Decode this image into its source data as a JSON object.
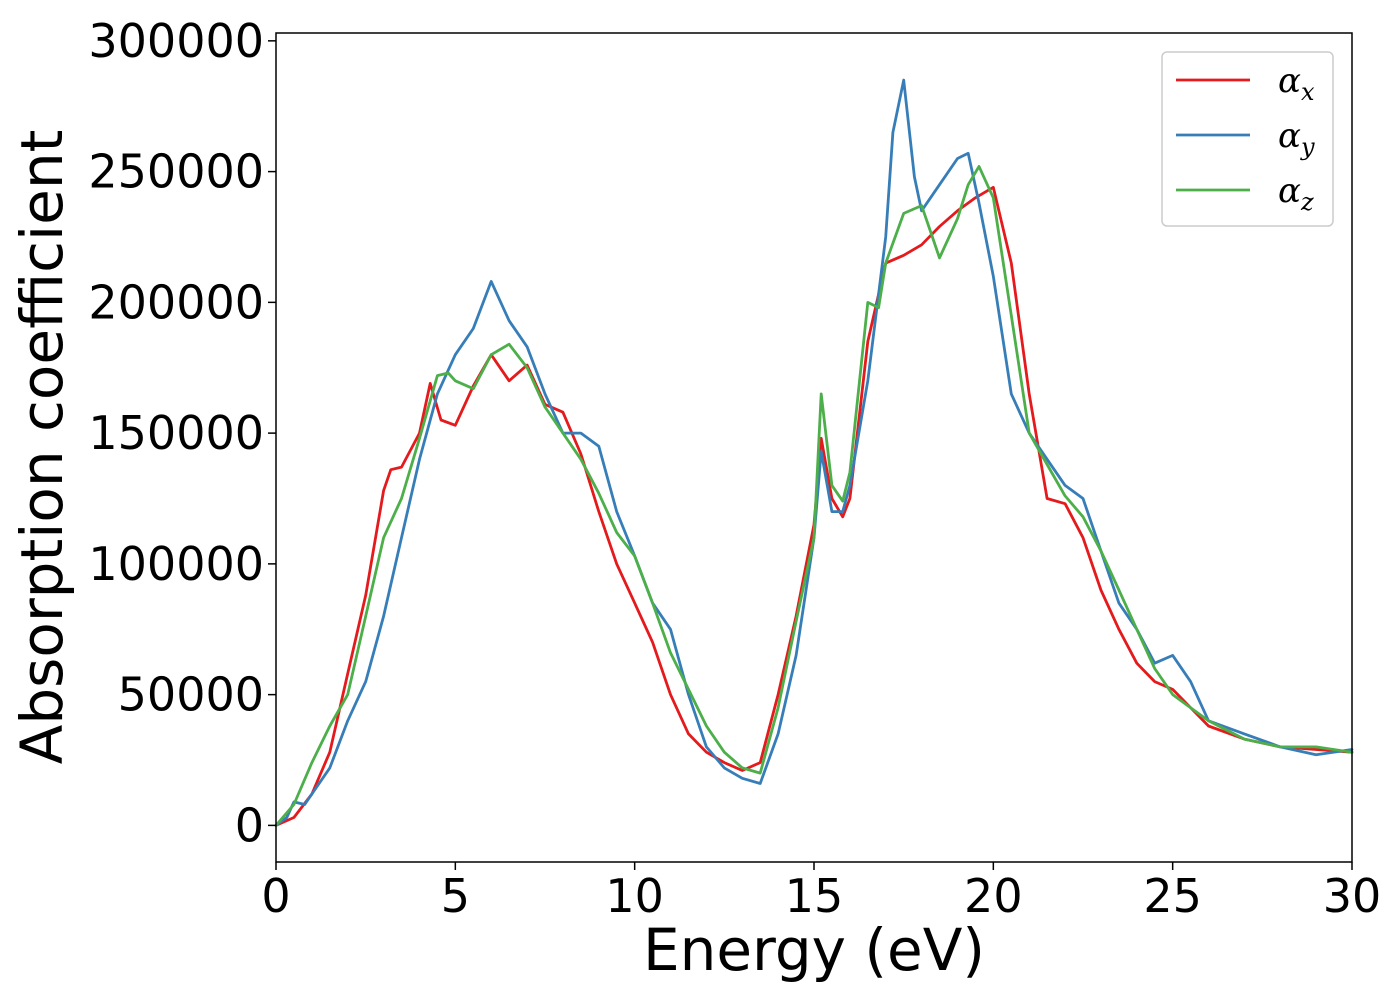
{
  "chart_data": {
    "type": "line",
    "title": "",
    "xlabel": "Energy (eV)",
    "ylabel": "Absorption coefficient",
    "xlim": [
      0,
      30
    ],
    "ylim": [
      -14000,
      303000
    ],
    "xticks": [
      0,
      5,
      10,
      15,
      20,
      25,
      30
    ],
    "yticks": [
      0,
      50000,
      100000,
      150000,
      200000,
      250000,
      300000
    ],
    "grid": false,
    "legend_position": "top-right",
    "series": [
      {
        "name": "α",
        "subscript": "x",
        "color": "#e41a1c",
        "x": [
          0,
          0.5,
          1.0,
          1.5,
          2.0,
          2.5,
          3.0,
          3.2,
          3.5,
          4.0,
          4.3,
          4.6,
          5.0,
          5.5,
          6.0,
          6.5,
          7.0,
          7.5,
          8.0,
          8.5,
          9.0,
          9.5,
          10.0,
          10.5,
          11.0,
          11.5,
          12.0,
          12.5,
          13.0,
          13.5,
          14.0,
          14.5,
          15.0,
          15.2,
          15.5,
          15.8,
          16.0,
          16.5,
          17.0,
          17.5,
          18.0,
          18.5,
          19.0,
          19.5,
          20.0,
          20.5,
          21.0,
          21.5,
          22.0,
          22.5,
          23.0,
          23.5,
          24.0,
          24.5,
          25.0,
          25.5,
          26.0,
          27.0,
          28.0,
          29.0,
          30.0
        ],
        "values": [
          0,
          3000,
          12000,
          28000,
          58000,
          88000,
          128000,
          136000,
          137000,
          150000,
          169000,
          155000,
          153000,
          168000,
          180000,
          170000,
          176000,
          161000,
          158000,
          142000,
          120000,
          100000,
          85000,
          70000,
          50000,
          35000,
          28000,
          24000,
          21000,
          24000,
          50000,
          80000,
          115000,
          148000,
          125000,
          118000,
          125000,
          185000,
          215000,
          218000,
          222000,
          229000,
          235000,
          240000,
          244000,
          215000,
          165000,
          125000,
          123000,
          110000,
          90000,
          75000,
          62000,
          55000,
          52000,
          45000,
          38000,
          33000,
          30000,
          29000,
          28000
        ]
      },
      {
        "name": "α",
        "subscript": "y",
        "color": "#377eb8",
        "x": [
          0,
          0.3,
          0.5,
          0.8,
          1.0,
          1.5,
          2.0,
          2.5,
          3.0,
          3.5,
          4.0,
          4.5,
          5.0,
          5.5,
          6.0,
          6.5,
          7.0,
          7.5,
          8.0,
          8.5,
          9.0,
          9.5,
          10.0,
          10.5,
          11.0,
          11.5,
          12.0,
          12.5,
          13.0,
          13.5,
          14.0,
          14.5,
          15.0,
          15.2,
          15.5,
          15.8,
          16.0,
          16.5,
          17.0,
          17.2,
          17.5,
          17.8,
          18.0,
          18.5,
          19.0,
          19.3,
          19.6,
          20.0,
          20.5,
          21.0,
          21.5,
          22.0,
          22.5,
          23.0,
          23.5,
          24.0,
          24.5,
          25.0,
          25.5,
          26.0,
          27.0,
          28.0,
          29.0,
          30.0
        ],
        "values": [
          0,
          3000,
          9000,
          8000,
          12000,
          22000,
          40000,
          55000,
          80000,
          110000,
          140000,
          165000,
          180000,
          190000,
          208000,
          193000,
          183000,
          165000,
          150000,
          150000,
          145000,
          120000,
          103000,
          85000,
          75000,
          50000,
          30000,
          22000,
          18000,
          16000,
          35000,
          65000,
          110000,
          143000,
          120000,
          120000,
          130000,
          170000,
          225000,
          265000,
          285000,
          248000,
          235000,
          245000,
          255000,
          257000,
          238000,
          210000,
          165000,
          150000,
          140000,
          130000,
          125000,
          105000,
          85000,
          75000,
          62000,
          65000,
          55000,
          40000,
          35000,
          30000,
          27000,
          29000
        ]
      },
      {
        "name": "α",
        "subscript": "z",
        "color": "#4daf4a",
        "x": [
          0,
          0.5,
          1.0,
          1.5,
          2.0,
          2.5,
          3.0,
          3.5,
          4.0,
          4.5,
          4.8,
          5.0,
          5.5,
          6.0,
          6.5,
          7.0,
          7.5,
          8.0,
          8.5,
          9.0,
          9.5,
          10.0,
          10.5,
          11.0,
          11.5,
          12.0,
          12.5,
          13.0,
          13.5,
          14.0,
          14.5,
          15.0,
          15.2,
          15.5,
          15.8,
          16.0,
          16.5,
          16.8,
          17.0,
          17.5,
          18.0,
          18.3,
          18.5,
          19.0,
          19.3,
          19.6,
          20.0,
          20.5,
          21.0,
          21.5,
          22.0,
          22.5,
          23.0,
          23.5,
          24.0,
          24.5,
          25.0,
          25.5,
          26.0,
          27.0,
          28.0,
          29.0,
          30.0
        ],
        "values": [
          0,
          8000,
          24000,
          38000,
          50000,
          80000,
          110000,
          125000,
          148000,
          172000,
          173000,
          170000,
          167000,
          180000,
          184000,
          175000,
          160000,
          150000,
          140000,
          127000,
          112000,
          103000,
          85000,
          66000,
          52000,
          38000,
          28000,
          22000,
          20000,
          45000,
          78000,
          110000,
          165000,
          130000,
          124000,
          135000,
          200000,
          198000,
          215000,
          234000,
          237000,
          225000,
          217000,
          232000,
          245000,
          252000,
          240000,
          195000,
          150000,
          138000,
          126000,
          118000,
          105000,
          90000,
          75000,
          60000,
          50000,
          45000,
          40000,
          33000,
          30000,
          30000,
          28000
        ]
      }
    ]
  }
}
